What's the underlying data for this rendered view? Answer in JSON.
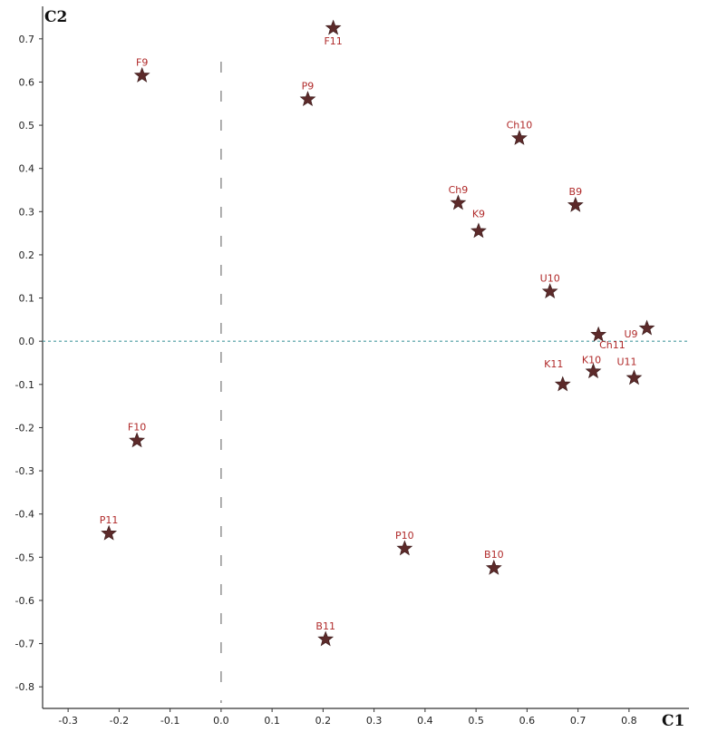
{
  "chart_data": {
    "type": "scatter",
    "xlabel": "C1",
    "ylabel": "C2",
    "xlim": [
      -0.35,
      0.85
    ],
    "ylim": [
      -0.85,
      0.75
    ],
    "x_ticks": [
      "-0.3",
      "-0.2",
      "-0.1",
      "0.0",
      "0.1",
      "0.2",
      "0.3",
      "0.4",
      "0.5",
      "0.6",
      "0.7",
      "0.8"
    ],
    "y_ticks": [
      "0.7",
      "0.6",
      "0.5",
      "0.4",
      "0.3",
      "0.2",
      "0.1",
      "0.0",
      "-0.1",
      "-0.2",
      "-0.3",
      "-0.4",
      "-0.5",
      "-0.6",
      "-0.7",
      "-0.8"
    ],
    "x_tick_values": [
      -0.3,
      -0.2,
      -0.1,
      0.0,
      0.1,
      0.2,
      0.3,
      0.4,
      0.5,
      0.6,
      0.7,
      0.8
    ],
    "y_tick_values": [
      0.7,
      0.6,
      0.5,
      0.4,
      0.3,
      0.2,
      0.1,
      0.0,
      -0.1,
      -0.2,
      -0.3,
      -0.4,
      -0.5,
      -0.6,
      -0.7,
      -0.8
    ],
    "grid": false,
    "reference_lines": {
      "x": 0.0,
      "y": 0.0
    },
    "marker": "star",
    "marker_color": "#5c2a2a",
    "label_color": "#b02a2a",
    "x_refline_color": "#999999",
    "y_refline_color": "#4a9aa0",
    "points": [
      {
        "label": "F11",
        "x": 0.22,
        "y": 0.725
      },
      {
        "label": "F9",
        "x": -0.155,
        "y": 0.615
      },
      {
        "label": "P9",
        "x": 0.17,
        "y": 0.56
      },
      {
        "label": "Ch10",
        "x": 0.585,
        "y": 0.47
      },
      {
        "label": "Ch9",
        "x": 0.465,
        "y": 0.32
      },
      {
        "label": "B9",
        "x": 0.695,
        "y": 0.315
      },
      {
        "label": "K9",
        "x": 0.505,
        "y": 0.255
      },
      {
        "label": "U10",
        "x": 0.645,
        "y": 0.115
      },
      {
        "label": "Ch11",
        "x": 0.74,
        "y": 0.015
      },
      {
        "label": "U9",
        "x": 0.835,
        "y": 0.03
      },
      {
        "label": "K11",
        "x": 0.67,
        "y": -0.1
      },
      {
        "label": "K10",
        "x": 0.73,
        "y": -0.07
      },
      {
        "label": "U11",
        "x": 0.81,
        "y": -0.085
      },
      {
        "label": "F10",
        "x": -0.165,
        "y": -0.23
      },
      {
        "label": "P11",
        "x": -0.22,
        "y": -0.445
      },
      {
        "label": "P10",
        "x": 0.36,
        "y": -0.48
      },
      {
        "label": "B10",
        "x": 0.535,
        "y": -0.525
      },
      {
        "label": "B11",
        "x": 0.205,
        "y": -0.69
      }
    ]
  }
}
